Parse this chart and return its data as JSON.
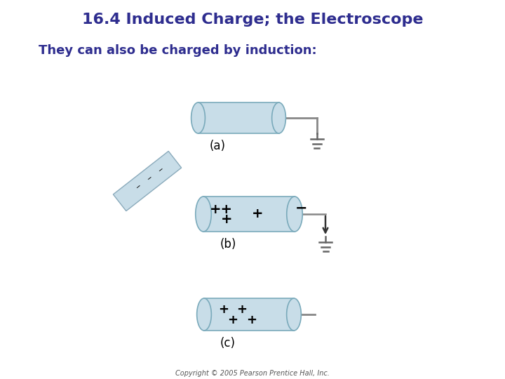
{
  "title": "16.4 Induced Charge; the Electroscope",
  "subtitle": "They can also be charged by induction:",
  "title_color": "#2e2d8f",
  "subtitle_color": "#2e2d8f",
  "bg_color": "#ffffff",
  "cylinder_color": "#c8dde8",
  "cylinder_edge_color": "#7aaabb",
  "rod_color": "#888888",
  "ground_color": "#666666",
  "label_a": "(a)",
  "label_b": "(b)",
  "label_c": "(c)",
  "copyright": "Copyright © 2005 Pearson Prentice Hall, Inc.",
  "plus_color": "#000000",
  "minus_color": "#000000",
  "arrow_color": "#333333",
  "tilt_rod_color": "#c8dde8",
  "tilt_rod_edge": "#8aaabb"
}
